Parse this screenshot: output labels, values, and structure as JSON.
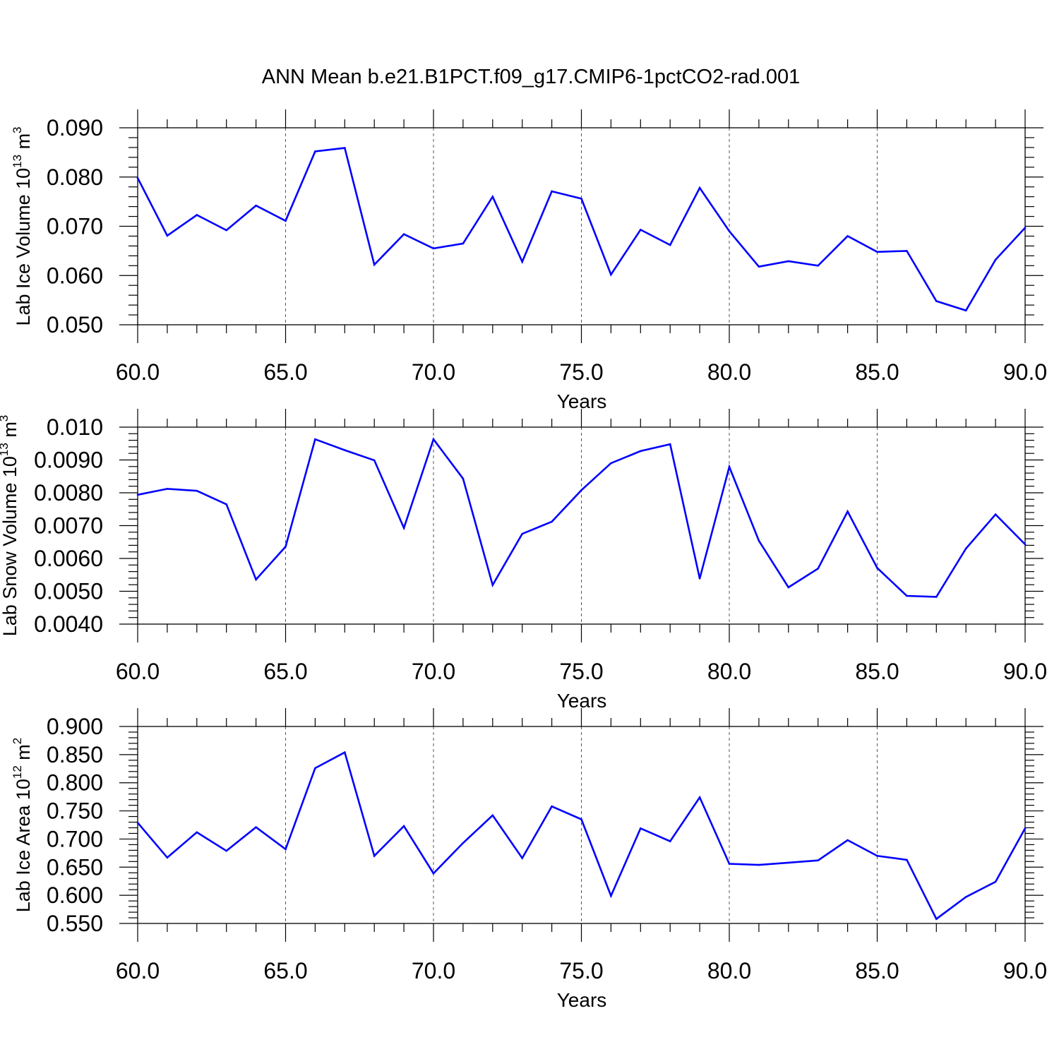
{
  "title": "ANN Mean b.e21.B1PCT.f09_g17.CMIP6-1pctCO2-rad.001",
  "colors": {
    "line": "#0000ff",
    "axis": "#000000",
    "grid": "#555555"
  },
  "chart_data": [
    {
      "type": "line",
      "ylabel": {
        "base": "Lab Ice Volume 10",
        "exp": "13",
        "unit": " m",
        "unit_exp": "3"
      },
      "xlabel": "Years",
      "xlim": [
        60,
        90
      ],
      "ylim": [
        0.05,
        0.09
      ],
      "x_ticks": [
        60,
        65,
        70,
        75,
        80,
        85,
        90
      ],
      "x_tick_labels": [
        "60.0",
        "65.0",
        "70.0",
        "75.0",
        "80.0",
        "85.0",
        "90.0"
      ],
      "y_ticks": [
        0.05,
        0.06,
        0.07,
        0.08,
        0.09
      ],
      "y_tick_labels": [
        "0.050",
        "0.060",
        "0.070",
        "0.080",
        "0.090"
      ],
      "grid": "vertical dashed at major x ticks",
      "x": [
        60,
        61,
        62,
        63,
        64,
        65,
        66,
        67,
        68,
        69,
        70,
        71,
        72,
        73,
        74,
        75,
        76,
        77,
        78,
        79,
        80,
        81,
        82,
        83,
        84,
        85,
        86,
        87,
        88,
        89,
        90
      ],
      "values": [
        0.0798,
        0.0681,
        0.0723,
        0.0692,
        0.0742,
        0.0711,
        0.0852,
        0.0859,
        0.0622,
        0.0684,
        0.0655,
        0.0665,
        0.076,
        0.0628,
        0.0771,
        0.0756,
        0.0602,
        0.0693,
        0.0662,
        0.0778,
        0.069,
        0.0618,
        0.0629,
        0.062,
        0.068,
        0.0648,
        0.065,
        0.0548,
        0.0529,
        0.0632,
        0.0697
      ]
    },
    {
      "type": "line",
      "ylabel": {
        "base": "Lab Snow Volume 10",
        "exp": "13",
        "unit": " m",
        "unit_exp": "3"
      },
      "xlabel": "Years",
      "xlim": [
        60,
        90
      ],
      "ylim": [
        0.004,
        0.01
      ],
      "x_ticks": [
        60,
        65,
        70,
        75,
        80,
        85,
        90
      ],
      "x_tick_labels": [
        "60.0",
        "65.0",
        "70.0",
        "75.0",
        "80.0",
        "85.0",
        "90.0"
      ],
      "y_ticks": [
        0.004,
        0.005,
        0.006,
        0.007,
        0.008,
        0.009,
        0.01
      ],
      "y_tick_labels": [
        "0.0040",
        "0.0050",
        "0.0060",
        "0.0070",
        "0.0080",
        "0.0090",
        "0.010"
      ],
      "grid": "vertical dashed at major x ticks",
      "x": [
        60,
        61,
        62,
        63,
        64,
        65,
        66,
        67,
        68,
        69,
        70,
        71,
        72,
        73,
        74,
        75,
        76,
        77,
        78,
        79,
        80,
        81,
        82,
        83,
        84,
        85,
        86,
        87,
        88,
        89,
        90
      ],
      "values": [
        0.00794,
        0.00812,
        0.00806,
        0.00765,
        0.00536,
        0.00636,
        0.00963,
        0.0093,
        0.00899,
        0.00693,
        0.00963,
        0.00843,
        0.00519,
        0.00675,
        0.00712,
        0.00808,
        0.0089,
        0.00927,
        0.00948,
        0.00539,
        0.00879,
        0.00654,
        0.00512,
        0.00569,
        0.00743,
        0.00571,
        0.00486,
        0.00483,
        0.0063,
        0.00734,
        0.00643
      ]
    },
    {
      "type": "line",
      "ylabel": {
        "base": "Lab Ice Area 10",
        "exp": "12",
        "unit": " m",
        "unit_exp": "2"
      },
      "xlabel": "Years",
      "xlim": [
        60,
        90
      ],
      "ylim": [
        0.55,
        0.9
      ],
      "x_ticks": [
        60,
        65,
        70,
        75,
        80,
        85,
        90
      ],
      "x_tick_labels": [
        "60.0",
        "65.0",
        "70.0",
        "75.0",
        "80.0",
        "85.0",
        "90.0"
      ],
      "y_ticks": [
        0.55,
        0.6,
        0.65,
        0.7,
        0.75,
        0.8,
        0.85,
        0.9
      ],
      "y_tick_labels": [
        "0.550",
        "0.600",
        "0.650",
        "0.700",
        "0.750",
        "0.800",
        "0.850",
        "0.900"
      ],
      "grid": "vertical dashed at major x ticks",
      "x": [
        60,
        61,
        62,
        63,
        64,
        65,
        66,
        67,
        68,
        69,
        70,
        71,
        72,
        73,
        74,
        75,
        76,
        77,
        78,
        79,
        80,
        81,
        82,
        83,
        84,
        85,
        86,
        87,
        88,
        89,
        90
      ],
      "values": [
        0.729,
        0.667,
        0.712,
        0.679,
        0.721,
        0.682,
        0.826,
        0.854,
        0.67,
        0.723,
        0.639,
        0.693,
        0.742,
        0.666,
        0.758,
        0.735,
        0.599,
        0.719,
        0.696,
        0.774,
        0.656,
        0.654,
        0.658,
        0.662,
        0.698,
        0.67,
        0.663,
        0.558,
        0.597,
        0.624,
        0.719
      ]
    }
  ]
}
